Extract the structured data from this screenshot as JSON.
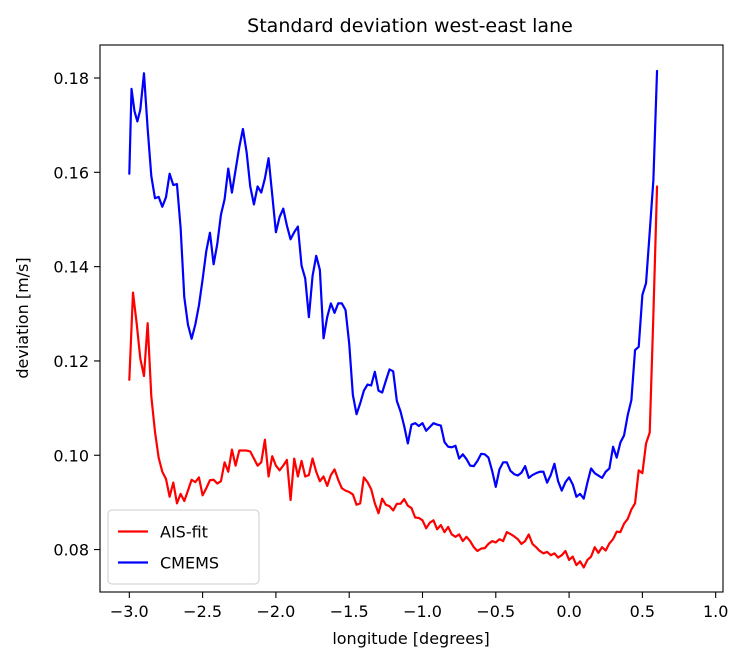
{
  "chart_data": {
    "type": "line",
    "title": "Standard deviation west-east lane",
    "xlabel": "longitude [degrees]",
    "ylabel": "deviation [m/s]",
    "xlim": [
      -3.2,
      1.05
    ],
    "ylim": [
      0.071,
      0.187
    ],
    "xticks": [
      -3.0,
      -2.5,
      -2.0,
      -1.5,
      -1.0,
      -0.5,
      0.0,
      0.5,
      1.0
    ],
    "xtick_labels": [
      "−3.0",
      "−2.5",
      "−2.0",
      "−1.5",
      "−1.0",
      "−0.5",
      "0.0",
      "0.5",
      "1.0"
    ],
    "yticks": [
      0.08,
      0.1,
      0.12,
      0.14,
      0.16,
      0.18
    ],
    "ytick_labels": [
      "0.08",
      "0.10",
      "0.12",
      "0.14",
      "0.16",
      "0.18"
    ],
    "grid": false,
    "legend": "lower-left",
    "series": [
      {
        "name": "AIS-fit",
        "color": "#ff0000",
        "points": [
          [
            -3.0,
            0.116
          ],
          [
            -2.975,
            0.1345
          ],
          [
            -2.95,
            0.128
          ],
          [
            -2.925,
            0.1205
          ],
          [
            -2.9,
            0.1168
          ],
          [
            -2.875,
            0.128
          ],
          [
            -2.85,
            0.1125
          ],
          [
            -2.825,
            0.105
          ],
          [
            -2.8,
            0.0995
          ],
          [
            -2.775,
            0.0965
          ],
          [
            -2.75,
            0.095
          ],
          [
            -2.725,
            0.0912
          ],
          [
            -2.7,
            0.0942
          ],
          [
            -2.675,
            0.0898
          ],
          [
            -2.65,
            0.0918
          ],
          [
            -2.625,
            0.0903
          ],
          [
            -2.6,
            0.0925
          ],
          [
            -2.575,
            0.0948
          ],
          [
            -2.55,
            0.0943
          ],
          [
            -2.525,
            0.0953
          ],
          [
            -2.5,
            0.0915
          ],
          [
            -2.475,
            0.093
          ],
          [
            -2.45,
            0.0947
          ],
          [
            -2.425,
            0.0948
          ],
          [
            -2.4,
            0.094
          ],
          [
            -2.375,
            0.0945
          ],
          [
            -2.35,
            0.0985
          ],
          [
            -2.325,
            0.0965
          ],
          [
            -2.3,
            0.1012
          ],
          [
            -2.275,
            0.0978
          ],
          [
            -2.25,
            0.101
          ],
          [
            -2.2,
            0.101
          ],
          [
            -2.175,
            0.1008
          ],
          [
            -2.15,
            0.0993
          ],
          [
            -2.125,
            0.0978
          ],
          [
            -2.1,
            0.0985
          ],
          [
            -2.075,
            0.1033
          ],
          [
            -2.05,
            0.0955
          ],
          [
            -2.025,
            0.0998
          ],
          [
            -2.0,
            0.0978
          ],
          [
            -1.975,
            0.0968
          ],
          [
            -1.95,
            0.0978
          ],
          [
            -1.925,
            0.099
          ],
          [
            -1.9,
            0.0905
          ],
          [
            -1.875,
            0.0993
          ],
          [
            -1.85,
            0.0955
          ],
          [
            -1.825,
            0.0988
          ],
          [
            -1.8,
            0.0955
          ],
          [
            -1.775,
            0.0958
          ],
          [
            -1.75,
            0.0993
          ],
          [
            -1.725,
            0.0965
          ],
          [
            -1.7,
            0.0945
          ],
          [
            -1.675,
            0.0955
          ],
          [
            -1.65,
            0.0935
          ],
          [
            -1.625,
            0.0958
          ],
          [
            -1.6,
            0.097
          ],
          [
            -1.575,
            0.0948
          ],
          [
            -1.55,
            0.093
          ],
          [
            -1.525,
            0.0925
          ],
          [
            -1.5,
            0.0922
          ],
          [
            -1.475,
            0.0917
          ],
          [
            -1.45,
            0.0895
          ],
          [
            -1.425,
            0.0898
          ],
          [
            -1.4,
            0.0953
          ],
          [
            -1.375,
            0.0943
          ],
          [
            -1.35,
            0.0928
          ],
          [
            -1.325,
            0.0898
          ],
          [
            -1.3,
            0.0877
          ],
          [
            -1.275,
            0.0908
          ],
          [
            -1.25,
            0.0895
          ],
          [
            -1.225,
            0.0892
          ],
          [
            -1.2,
            0.0883
          ],
          [
            -1.175,
            0.0897
          ],
          [
            -1.15,
            0.0897
          ],
          [
            -1.125,
            0.0907
          ],
          [
            -1.1,
            0.0893
          ],
          [
            -1.075,
            0.0888
          ],
          [
            -1.05,
            0.0868
          ],
          [
            -1.025,
            0.0867
          ],
          [
            -1.0,
            0.0862
          ],
          [
            -0.975,
            0.0845
          ],
          [
            -0.95,
            0.0857
          ],
          [
            -0.925,
            0.0862
          ],
          [
            -0.9,
            0.0843
          ],
          [
            -0.875,
            0.0852
          ],
          [
            -0.85,
            0.0837
          ],
          [
            -0.825,
            0.0848
          ],
          [
            -0.8,
            0.0832
          ],
          [
            -0.775,
            0.0827
          ],
          [
            -0.75,
            0.0832
          ],
          [
            -0.725,
            0.0818
          ],
          [
            -0.7,
            0.0827
          ],
          [
            -0.675,
            0.0818
          ],
          [
            -0.65,
            0.0805
          ],
          [
            -0.625,
            0.0797
          ],
          [
            -0.6,
            0.0802
          ],
          [
            -0.575,
            0.0803
          ],
          [
            -0.55,
            0.0812
          ],
          [
            -0.525,
            0.0818
          ],
          [
            -0.5,
            0.0815
          ],
          [
            -0.475,
            0.0822
          ],
          [
            -0.45,
            0.0818
          ],
          [
            -0.425,
            0.0837
          ],
          [
            -0.4,
            0.0833
          ],
          [
            -0.375,
            0.0828
          ],
          [
            -0.35,
            0.0822
          ],
          [
            -0.325,
            0.0812
          ],
          [
            -0.3,
            0.0818
          ],
          [
            -0.275,
            0.0832
          ],
          [
            -0.25,
            0.0812
          ],
          [
            -0.225,
            0.0805
          ],
          [
            -0.2,
            0.0797
          ],
          [
            -0.175,
            0.0792
          ],
          [
            -0.15,
            0.0795
          ],
          [
            -0.125,
            0.0788
          ],
          [
            -0.1,
            0.0792
          ],
          [
            -0.075,
            0.0783
          ],
          [
            -0.05,
            0.0788
          ],
          [
            -0.025,
            0.0797
          ],
          [
            0.0,
            0.0778
          ],
          [
            0.025,
            0.0785
          ],
          [
            0.05,
            0.0767
          ],
          [
            0.075,
            0.0775
          ],
          [
            0.1,
            0.0762
          ],
          [
            0.125,
            0.0778
          ],
          [
            0.15,
            0.0785
          ],
          [
            0.175,
            0.0805
          ],
          [
            0.2,
            0.0793
          ],
          [
            0.225,
            0.0805
          ],
          [
            0.25,
            0.0798
          ],
          [
            0.275,
            0.0813
          ],
          [
            0.3,
            0.0822
          ],
          [
            0.325,
            0.0838
          ],
          [
            0.35,
            0.0837
          ],
          [
            0.375,
            0.0855
          ],
          [
            0.4,
            0.0865
          ],
          [
            0.425,
            0.0885
          ],
          [
            0.45,
            0.0898
          ],
          [
            0.475,
            0.0968
          ],
          [
            0.5,
            0.0962
          ],
          [
            0.525,
            0.1025
          ],
          [
            0.55,
            0.1048
          ],
          [
            0.575,
            0.1297
          ],
          [
            0.6,
            0.157
          ]
        ]
      },
      {
        "name": "CMEMS",
        "color": "#0000ff",
        "points": [
          [
            -3.0,
            0.1597
          ],
          [
            -2.985,
            0.1777
          ],
          [
            -2.965,
            0.173
          ],
          [
            -2.945,
            0.1708
          ],
          [
            -2.925,
            0.1733
          ],
          [
            -2.9,
            0.181
          ],
          [
            -2.875,
            0.1693
          ],
          [
            -2.85,
            0.1592
          ],
          [
            -2.825,
            0.1545
          ],
          [
            -2.8,
            0.1548
          ],
          [
            -2.775,
            0.1527
          ],
          [
            -2.75,
            0.1547
          ],
          [
            -2.725,
            0.1597
          ],
          [
            -2.7,
            0.1573
          ],
          [
            -2.675,
            0.1575
          ],
          [
            -2.65,
            0.1482
          ],
          [
            -2.625,
            0.1335
          ],
          [
            -2.6,
            0.1277
          ],
          [
            -2.575,
            0.1247
          ],
          [
            -2.55,
            0.1277
          ],
          [
            -2.525,
            0.1318
          ],
          [
            -2.5,
            0.1373
          ],
          [
            -2.475,
            0.1433
          ],
          [
            -2.45,
            0.1472
          ],
          [
            -2.425,
            0.1405
          ],
          [
            -2.4,
            0.1448
          ],
          [
            -2.375,
            0.151
          ],
          [
            -2.35,
            0.1543
          ],
          [
            -2.325,
            0.1608
          ],
          [
            -2.3,
            0.1557
          ],
          [
            -2.275,
            0.1605
          ],
          [
            -2.25,
            0.1653
          ],
          [
            -2.225,
            0.1692
          ],
          [
            -2.2,
            0.1643
          ],
          [
            -2.175,
            0.157
          ],
          [
            -2.15,
            0.1532
          ],
          [
            -2.125,
            0.157
          ],
          [
            -2.1,
            0.1557
          ],
          [
            -2.075,
            0.1587
          ],
          [
            -2.05,
            0.163
          ],
          [
            -2.025,
            0.1552
          ],
          [
            -2.0,
            0.1473
          ],
          [
            -1.975,
            0.1505
          ],
          [
            -1.95,
            0.1523
          ],
          [
            -1.925,
            0.1487
          ],
          [
            -1.9,
            0.1458
          ],
          [
            -1.875,
            0.1473
          ],
          [
            -1.85,
            0.1485
          ],
          [
            -1.825,
            0.1402
          ],
          [
            -1.8,
            0.1375
          ],
          [
            -1.775,
            0.1293
          ],
          [
            -1.75,
            0.138
          ],
          [
            -1.725,
            0.1423
          ],
          [
            -1.7,
            0.1393
          ],
          [
            -1.675,
            0.1248
          ],
          [
            -1.65,
            0.1293
          ],
          [
            -1.625,
            0.1322
          ],
          [
            -1.6,
            0.1302
          ],
          [
            -1.575,
            0.1322
          ],
          [
            -1.55,
            0.1322
          ],
          [
            -1.525,
            0.1308
          ],
          [
            -1.5,
            0.1237
          ],
          [
            -1.475,
            0.1128
          ],
          [
            -1.45,
            0.1087
          ],
          [
            -1.425,
            0.111
          ],
          [
            -1.4,
            0.1137
          ],
          [
            -1.375,
            0.115
          ],
          [
            -1.35,
            0.1148
          ],
          [
            -1.325,
            0.1177
          ],
          [
            -1.3,
            0.1137
          ],
          [
            -1.275,
            0.1133
          ],
          [
            -1.25,
            0.1158
          ],
          [
            -1.225,
            0.1182
          ],
          [
            -1.2,
            0.1178
          ],
          [
            -1.175,
            0.1115
          ],
          [
            -1.15,
            0.1093
          ],
          [
            -1.125,
            0.1062
          ],
          [
            -1.1,
            0.1025
          ],
          [
            -1.075,
            0.1065
          ],
          [
            -1.05,
            0.1068
          ],
          [
            -1.025,
            0.1062
          ],
          [
            -1.0,
            0.1068
          ],
          [
            -0.975,
            0.1052
          ],
          [
            -0.95,
            0.106
          ],
          [
            -0.925,
            0.1068
          ],
          [
            -0.9,
            0.1065
          ],
          [
            -0.875,
            0.1063
          ],
          [
            -0.85,
            0.1028
          ],
          [
            -0.825,
            0.1018
          ],
          [
            -0.8,
            0.1017
          ],
          [
            -0.775,
            0.102
          ],
          [
            -0.75,
            0.0993
          ],
          [
            -0.725,
            0.1002
          ],
          [
            -0.7,
            0.0992
          ],
          [
            -0.675,
            0.0978
          ],
          [
            -0.65,
            0.0977
          ],
          [
            -0.625,
            0.0988
          ],
          [
            -0.6,
            0.1003
          ],
          [
            -0.575,
            0.1002
          ],
          [
            -0.55,
            0.0995
          ],
          [
            -0.525,
            0.0967
          ],
          [
            -0.5,
            0.0933
          ],
          [
            -0.475,
            0.097
          ],
          [
            -0.45,
            0.0985
          ],
          [
            -0.425,
            0.0985
          ],
          [
            -0.4,
            0.0967
          ],
          [
            -0.375,
            0.096
          ],
          [
            -0.35,
            0.0957
          ],
          [
            -0.325,
            0.0963
          ],
          [
            -0.3,
            0.0977
          ],
          [
            -0.275,
            0.0952
          ],
          [
            -0.25,
            0.0958
          ],
          [
            -0.225,
            0.0962
          ],
          [
            -0.2,
            0.0965
          ],
          [
            -0.175,
            0.0965
          ],
          [
            -0.15,
            0.0942
          ],
          [
            -0.125,
            0.0958
          ],
          [
            -0.1,
            0.0982
          ],
          [
            -0.075,
            0.0945
          ],
          [
            -0.05,
            0.0925
          ],
          [
            -0.025,
            0.0943
          ],
          [
            0.0,
            0.0953
          ],
          [
            0.025,
            0.0938
          ],
          [
            0.05,
            0.0912
          ],
          [
            0.075,
            0.0918
          ],
          [
            0.1,
            0.0908
          ],
          [
            0.125,
            0.0942
          ],
          [
            0.15,
            0.0972
          ],
          [
            0.175,
            0.0962
          ],
          [
            0.2,
            0.0957
          ],
          [
            0.225,
            0.0952
          ],
          [
            0.25,
            0.0965
          ],
          [
            0.275,
            0.0972
          ],
          [
            0.3,
            0.1018
          ],
          [
            0.325,
            0.0995
          ],
          [
            0.35,
            0.1027
          ],
          [
            0.375,
            0.1042
          ],
          [
            0.4,
            0.1085
          ],
          [
            0.425,
            0.1117
          ],
          [
            0.45,
            0.1223
          ],
          [
            0.475,
            0.123
          ],
          [
            0.5,
            0.134
          ],
          [
            0.525,
            0.1365
          ],
          [
            0.55,
            0.1473
          ],
          [
            0.575,
            0.1583
          ],
          [
            0.6,
            0.1815
          ]
        ]
      }
    ]
  }
}
